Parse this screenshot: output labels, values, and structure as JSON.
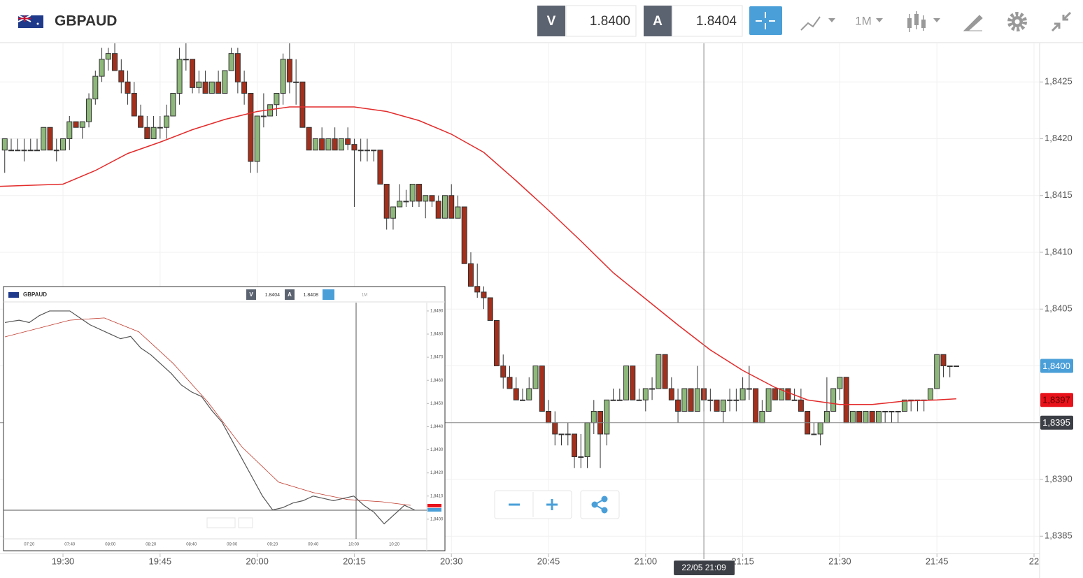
{
  "chart_data": {
    "type": "candlestick",
    "symbol": "GBPAUD",
    "bid_label": "V",
    "bid": "1.8400",
    "ask_label": "A",
    "ask": "1.8404",
    "timeframe": "1M",
    "xlim": [
      "19:20",
      "22:00"
    ],
    "ylim": [
      1.83836,
      1.84284
    ],
    "xticks": [
      "19:30",
      "19:45",
      "20:00",
      "20:15",
      "20:30",
      "20:45",
      "21:00",
      "21:15",
      "21:30",
      "21:45",
      {
        "value": "22:00",
        "label": "22"
      }
    ],
    "yticks": [
      {
        "value": 1.8425,
        "label": "1,8425"
      },
      {
        "value": 1.842,
        "label": "1,8420"
      },
      {
        "value": 1.8415,
        "label": "1,8415"
      },
      {
        "value": 1.841,
        "label": "1,8410"
      },
      {
        "value": 1.8405,
        "label": "1,8405"
      },
      {
        "value": 1.84,
        "label": "1,8400"
      },
      {
        "value": 1.8395,
        "label": "1,8395"
      },
      {
        "value": 1.839,
        "label": "1,8390"
      },
      {
        "value": 1.8385,
        "label": "1,8385"
      }
    ],
    "up_color": "#8db87a",
    "down_color": "#a3301c",
    "x": [
      "19:21",
      "19:22",
      "19:23",
      "19:24",
      "19:25",
      "19:26",
      "19:27",
      "19:28",
      "19:29",
      "19:30",
      "19:31",
      "19:32",
      "19:33",
      "19:34",
      "19:35",
      "19:36",
      "19:37",
      "19:38",
      "19:39",
      "19:40",
      "19:41",
      "19:42",
      "19:43",
      "19:44",
      "19:45",
      "19:46",
      "19:47",
      "19:48",
      "19:49",
      "19:50",
      "19:51",
      "19:52",
      "19:53",
      "19:54",
      "19:55",
      "19:56",
      "19:57",
      "19:58",
      "19:59",
      "20:00",
      "20:01",
      "20:02",
      "20:03",
      "20:04",
      "20:05",
      "20:06",
      "20:07",
      "20:08",
      "20:09",
      "20:10",
      "20:11",
      "20:12",
      "20:13",
      "20:14",
      "20:15",
      "20:16",
      "20:17",
      "20:18",
      "20:19",
      "20:20",
      "20:21",
      "20:22",
      "20:23",
      "20:24",
      "20:25",
      "20:26",
      "20:27",
      "20:28",
      "20:29",
      "20:30",
      "20:31",
      "20:32",
      "20:33",
      "20:34",
      "20:35",
      "20:36",
      "20:37",
      "20:38",
      "20:39",
      "20:40",
      "20:41",
      "20:42",
      "20:43",
      "20:44",
      "20:45",
      "20:46",
      "20:47",
      "20:48",
      "20:49",
      "20:50",
      "20:51",
      "20:52",
      "20:53",
      "20:54",
      "20:55",
      "20:56",
      "20:57",
      "20:58",
      "20:59",
      "21:00",
      "21:01",
      "21:02",
      "21:03",
      "21:04",
      "21:05",
      "21:06",
      "21:07",
      "21:08",
      "21:09",
      "21:10",
      "21:11",
      "21:12",
      "21:13",
      "21:14",
      "21:15",
      "21:16",
      "21:17",
      "21:18",
      "21:19",
      "21:20",
      "21:21",
      "21:22",
      "21:23",
      "21:24",
      "21:25",
      "21:26",
      "21:27",
      "21:28",
      "21:29",
      "21:30",
      "21:31",
      "21:32",
      "21:33",
      "21:34",
      "21:35",
      "21:36",
      "21:37",
      "21:38",
      "21:39",
      "21:40",
      "21:41",
      "21:42",
      "21:43",
      "21:44",
      "21:45",
      "21:46",
      "21:47",
      "21:48"
    ],
    "candles": [
      [
        1.8419,
        1.842,
        1.8417,
        1.842
      ],
      [
        1.8419,
        1.842,
        1.8419,
        1.8419
      ],
      [
        1.8419,
        1.842,
        1.8419,
        1.8419
      ],
      [
        1.8419,
        1.842,
        1.8418,
        1.8419
      ],
      [
        1.8419,
        1.842,
        1.8419,
        1.8419
      ],
      [
        1.8419,
        1.842,
        1.8419,
        1.8419
      ],
      [
        1.8419,
        1.8421,
        1.8419,
        1.8421
      ],
      [
        1.8421,
        1.8421,
        1.8419,
        1.8419
      ],
      [
        1.8419,
        1.842,
        1.8418,
        1.8419
      ],
      [
        1.8419,
        1.842,
        1.8419,
        1.842
      ],
      [
        1.842,
        1.8422,
        1.8419,
        1.84215
      ],
      [
        1.84215,
        1.84215,
        1.8421,
        1.8421
      ],
      [
        1.8421,
        1.84215,
        1.842,
        1.84215
      ],
      [
        1.84215,
        1.8424,
        1.8421,
        1.84235
      ],
      [
        1.84235,
        1.8426,
        1.8423,
        1.84255
      ],
      [
        1.84255,
        1.8428,
        1.8425,
        1.8427
      ],
      [
        1.8427,
        1.8428,
        1.8426,
        1.84275
      ],
      [
        1.84275,
        1.84285,
        1.8426,
        1.8426
      ],
      [
        1.8426,
        1.8427,
        1.8424,
        1.8425
      ],
      [
        1.8425,
        1.8426,
        1.8423,
        1.8424
      ],
      [
        1.8424,
        1.8425,
        1.8422,
        1.8422
      ],
      [
        1.8422,
        1.8423,
        1.8421,
        1.8421
      ],
      [
        1.8421,
        1.8422,
        1.842,
        1.842
      ],
      [
        1.842,
        1.8422,
        1.842,
        1.8421
      ],
      [
        1.8421,
        1.8422,
        1.842,
        1.8421
      ],
      [
        1.8421,
        1.8423,
        1.842,
        1.8422
      ],
      [
        1.8422,
        1.8424,
        1.8422,
        1.8424
      ],
      [
        1.8424,
        1.8428,
        1.8423,
        1.8427
      ],
      [
        1.8427,
        1.84285,
        1.8426,
        1.8427
      ],
      [
        1.8427,
        1.8427,
        1.8424,
        1.84245
      ],
      [
        1.84245,
        1.8426,
        1.8424,
        1.8425
      ],
      [
        1.8425,
        1.8426,
        1.8424,
        1.8424
      ],
      [
        1.8424,
        1.8425,
        1.8424,
        1.8425
      ],
      [
        1.8425,
        1.8426,
        1.8424,
        1.8424
      ],
      [
        1.8424,
        1.8426,
        1.8424,
        1.8426
      ],
      [
        1.8426,
        1.8428,
        1.8426,
        1.84275
      ],
      [
        1.84275,
        1.8428,
        1.8424,
        1.8425
      ],
      [
        1.8425,
        1.8426,
        1.8423,
        1.8424
      ],
      [
        1.8424,
        1.8424,
        1.8417,
        1.8418
      ],
      [
        1.8418,
        1.8422,
        1.8417,
        1.8422
      ],
      [
        1.8422,
        1.8424,
        1.8421,
        1.8422
      ],
      [
        1.8422,
        1.8423,
        1.8422,
        1.8423
      ],
      [
        1.8423,
        1.8424,
        1.8422,
        1.8424
      ],
      [
        1.8424,
        1.84275,
        1.8423,
        1.8427
      ],
      [
        1.8427,
        1.84285,
        1.8424,
        1.8425
      ],
      [
        1.8425,
        1.8427,
        1.8423,
        1.8425
      ],
      [
        1.8425,
        1.8425,
        1.8421,
        1.8421
      ],
      [
        1.8421,
        1.8421,
        1.8419,
        1.8419
      ],
      [
        1.8419,
        1.842,
        1.8419,
        1.842
      ],
      [
        1.842,
        1.8421,
        1.8419,
        1.8419
      ],
      [
        1.8419,
        1.842,
        1.8419,
        1.842
      ],
      [
        1.842,
        1.8421,
        1.8419,
        1.8419
      ],
      [
        1.8419,
        1.842,
        1.8419,
        1.842
      ],
      [
        1.842,
        1.8421,
        1.8419,
        1.84195
      ],
      [
        1.84195,
        1.842,
        1.8414,
        1.8419
      ],
      [
        1.8419,
        1.842,
        1.8418,
        1.8419
      ],
      [
        1.8419,
        1.842,
        1.8418,
        1.8419
      ],
      [
        1.8419,
        1.8419,
        1.8418,
        1.8419
      ],
      [
        1.8419,
        1.8419,
        1.8416,
        1.8416
      ],
      [
        1.8416,
        1.8416,
        1.8412,
        1.8413
      ],
      [
        1.8413,
        1.8414,
        1.8412,
        1.8414
      ],
      [
        1.8414,
        1.8416,
        1.8414,
        1.84145
      ],
      [
        1.84145,
        1.84155,
        1.8414,
        1.84145
      ],
      [
        1.84145,
        1.8416,
        1.8414,
        1.8416
      ],
      [
        1.8416,
        1.8416,
        1.8414,
        1.84145
      ],
      [
        1.84145,
        1.8415,
        1.8413,
        1.8415
      ],
      [
        1.8415,
        1.8415,
        1.8414,
        1.84145
      ],
      [
        1.84145,
        1.8415,
        1.8413,
        1.8413
      ],
      [
        1.8413,
        1.8415,
        1.8413,
        1.8415
      ],
      [
        1.8415,
        1.8416,
        1.8413,
        1.8413
      ],
      [
        1.8413,
        1.8415,
        1.8413,
        1.8414
      ],
      [
        1.8414,
        1.8414,
        1.8409,
        1.8409
      ],
      [
        1.8409,
        1.841,
        1.8407,
        1.8407
      ],
      [
        1.8407,
        1.8409,
        1.8406,
        1.84065
      ],
      [
        1.84065,
        1.8407,
        1.8405,
        1.8406
      ],
      [
        1.8406,
        1.8406,
        1.8404,
        1.8404
      ],
      [
        1.8404,
        1.8404,
        1.84,
        1.84
      ],
      [
        1.84,
        1.8401,
        1.8398,
        1.8399
      ],
      [
        1.8399,
        1.84,
        1.8398,
        1.8398
      ],
      [
        1.8398,
        1.8399,
        1.8397,
        1.8397
      ],
      [
        1.8397,
        1.8398,
        1.8397,
        1.8397
      ],
      [
        1.8397,
        1.8399,
        1.8397,
        1.8398
      ],
      [
        1.8398,
        1.84,
        1.8398,
        1.84
      ],
      [
        1.84,
        1.84,
        1.8396,
        1.8396
      ],
      [
        1.8396,
        1.8397,
        1.8395,
        1.8395
      ],
      [
        1.8395,
        1.8396,
        1.8393,
        1.8394
      ],
      [
        1.8394,
        1.8394,
        1.8393,
        1.8394
      ],
      [
        1.8394,
        1.8395,
        1.8393,
        1.8394
      ],
      [
        1.8394,
        1.8394,
        1.8391,
        1.8392
      ],
      [
        1.8392,
        1.8394,
        1.8391,
        1.8392
      ],
      [
        1.8392,
        1.8395,
        1.8391,
        1.8395
      ],
      [
        1.8395,
        1.8397,
        1.8394,
        1.8396
      ],
      [
        1.8396,
        1.8396,
        1.8391,
        1.8394
      ],
      [
        1.8394,
        1.8397,
        1.8393,
        1.8397
      ],
      [
        1.8397,
        1.8398,
        1.8397,
        1.8397
      ],
      [
        1.8397,
        1.8398,
        1.8397,
        1.8397
      ],
      [
        1.8397,
        1.84,
        1.8397,
        1.84
      ],
      [
        1.84,
        1.84,
        1.8397,
        1.8397
      ],
      [
        1.8397,
        1.8398,
        1.8397,
        1.8397
      ],
      [
        1.8397,
        1.8398,
        1.8396,
        1.8398
      ],
      [
        1.8398,
        1.8399,
        1.8397,
        1.8398
      ],
      [
        1.8398,
        1.8401,
        1.8398,
        1.8401
      ],
      [
        1.8401,
        1.8401,
        1.8398,
        1.8398
      ],
      [
        1.8398,
        1.8399,
        1.8397,
        1.8397
      ],
      [
        1.8397,
        1.8398,
        1.8395,
        1.8396
      ],
      [
        1.8396,
        1.8398,
        1.8396,
        1.8398
      ],
      [
        1.8398,
        1.8398,
        1.8396,
        1.8396
      ],
      [
        1.8396,
        1.84,
        1.8396,
        1.8398
      ],
      [
        1.8398,
        1.8398,
        1.8396,
        1.8397
      ],
      [
        1.8397,
        1.8398,
        1.8396,
        1.8397
      ],
      [
        1.8397,
        1.8397,
        1.8396,
        1.8396
      ],
      [
        1.8396,
        1.8397,
        1.8395,
        1.8397
      ],
      [
        1.8397,
        1.8398,
        1.8396,
        1.8397
      ],
      [
        1.8397,
        1.8398,
        1.8396,
        1.8397
      ],
      [
        1.8397,
        1.8399,
        1.8397,
        1.8398
      ],
      [
        1.8398,
        1.84,
        1.8397,
        1.8398
      ],
      [
        1.8398,
        1.8398,
        1.8395,
        1.8395
      ],
      [
        1.8395,
        1.8397,
        1.8395,
        1.8396
      ],
      [
        1.8396,
        1.8398,
        1.8396,
        1.8398
      ],
      [
        1.8398,
        1.8398,
        1.8397,
        1.8397
      ],
      [
        1.8397,
        1.8398,
        1.8397,
        1.8398
      ],
      [
        1.8398,
        1.8398,
        1.8397,
        1.8397
      ],
      [
        1.8397,
        1.8398,
        1.8397,
        1.8397
      ],
      [
        1.8397,
        1.8398,
        1.8396,
        1.8396
      ],
      [
        1.8396,
        1.8396,
        1.8394,
        1.8394
      ],
      [
        1.8394,
        1.8395,
        1.8394,
        1.8394
      ],
      [
        1.8394,
        1.8395,
        1.8393,
        1.8395
      ],
      [
        1.8395,
        1.8399,
        1.8395,
        1.8396
      ],
      [
        1.8396,
        1.8398,
        1.8396,
        1.8398
      ],
      [
        1.8398,
        1.8399,
        1.8397,
        1.8399
      ],
      [
        1.8399,
        1.8399,
        1.8395,
        1.8395
      ],
      [
        1.8395,
        1.8396,
        1.8395,
        1.8396
      ],
      [
        1.8396,
        1.8396,
        1.8395,
        1.8395
      ],
      [
        1.8395,
        1.8396,
        1.8395,
        1.8396
      ],
      [
        1.8396,
        1.8396,
        1.8395,
        1.8395
      ],
      [
        1.8395,
        1.8396,
        1.8395,
        1.8396
      ],
      [
        1.8396,
        1.8396,
        1.8395,
        1.8396
      ],
      [
        1.8396,
        1.8396,
        1.8395,
        1.8396
      ],
      [
        1.8396,
        1.8396,
        1.8395,
        1.8396
      ],
      [
        1.8396,
        1.8397,
        1.8396,
        1.8397
      ],
      [
        1.8397,
        1.8397,
        1.8396,
        1.8397
      ],
      [
        1.8397,
        1.8397,
        1.8396,
        1.8397
      ],
      [
        1.8397,
        1.8397,
        1.8396,
        1.8397
      ],
      [
        1.8397,
        1.8398,
        1.8397,
        1.8398
      ],
      [
        1.8398,
        1.8401,
        1.8398,
        1.8401
      ],
      [
        1.8401,
        1.8401,
        1.8399,
        1.84
      ],
      [
        1.84,
        1.84,
        1.8399,
        1.84
      ],
      [
        1.84,
        1.84,
        1.84,
        1.84
      ]
    ],
    "moving_average": {
      "color": "#e32b2b",
      "x": [
        "19:20",
        "19:30",
        "19:35",
        "19:40",
        "19:45",
        "19:50",
        "19:55",
        "20:00",
        "20:05",
        "20:10",
        "20:15",
        "20:20",
        "20:25",
        "20:30",
        "20:35",
        "20:40",
        "20:45",
        "20:50",
        "20:55",
        "21:00",
        "21:05",
        "21:10",
        "21:15",
        "21:20",
        "21:25",
        "21:30",
        "21:35",
        "21:40",
        "21:45",
        "21:48"
      ],
      "values": [
        1.84158,
        1.8416,
        1.84172,
        1.84187,
        1.84197,
        1.84208,
        1.84217,
        1.84224,
        1.84228,
        1.84228,
        1.84228,
        1.84224,
        1.84216,
        1.84204,
        1.84188,
        1.84163,
        1.84137,
        1.8411,
        1.84082,
        1.84059,
        1.84036,
        1.84014,
        1.83996,
        1.83981,
        1.8397,
        1.83966,
        1.83966,
        1.83969,
        1.8397,
        1.83971
      ]
    },
    "price_tags": [
      {
        "value": 1.84,
        "label": "1,8400",
        "color": "#4a9fd8"
      },
      {
        "value": 1.8397,
        "label": "1,8397",
        "color": "#e8121a"
      }
    ],
    "crosshair": {
      "x": "21:09",
      "y": 1.8395,
      "x_label": "22/05 21:09",
      "y_label": "1,8395"
    }
  },
  "inset": {
    "symbol": "GBPAUD",
    "bid_label": "V",
    "bid": "1.8404",
    "ask_label": "A",
    "ask": "1.8408",
    "timeframe": "1M",
    "chart": {
      "type": "line",
      "color": "#555555",
      "xlim": [
        "07:08",
        "10:36"
      ],
      "ylim": [
        1.83918,
        1.84936
      ],
      "xticks": [
        "07:20",
        "07:40",
        "08:00",
        "08:20",
        "08:40",
        "09:00",
        "09:20",
        "09:40",
        "10:00",
        "10:20"
      ],
      "yticks": [
        {
          "value": 1.849,
          "label": "1,8490"
        },
        {
          "value": 1.848,
          "label": "1,8480"
        },
        {
          "value": 1.847,
          "label": "1,8470"
        },
        {
          "value": 1.846,
          "label": "1,8460"
        },
        {
          "value": 1.845,
          "label": "1,8450"
        },
        {
          "value": 1.844,
          "label": "1,8440"
        },
        {
          "value": 1.843,
          "label": "1,8430"
        },
        {
          "value": 1.842,
          "label": "1,8420"
        },
        {
          "value": 1.841,
          "label": "1,8410"
        },
        {
          "value": 1.84,
          "label": "1,8400"
        }
      ],
      "x": [
        "07:08",
        "07:15",
        "07:20",
        "07:25",
        "07:30",
        "07:40",
        "07:45",
        "07:50",
        "08:00",
        "08:05",
        "08:10",
        "08:15",
        "08:20",
        "08:25",
        "08:30",
        "08:35",
        "08:40",
        "08:45",
        "08:50",
        "08:55",
        "09:00",
        "09:05",
        "09:10",
        "09:15",
        "09:20",
        "09:25",
        "09:30",
        "09:35",
        "09:40",
        "09:45",
        "09:50",
        "09:55",
        "10:00",
        "10:05",
        "10:10",
        "10:15",
        "10:20",
        "10:25",
        "10:30"
      ],
      "values": [
        1.8485,
        1.8486,
        1.8485,
        1.8488,
        1.849,
        1.849,
        1.8487,
        1.8484,
        1.848,
        1.8478,
        1.8479,
        1.8474,
        1.8471,
        1.8467,
        1.8463,
        1.8458,
        1.8455,
        1.8453,
        1.8447,
        1.8442,
        1.8434,
        1.8426,
        1.8418,
        1.841,
        1.8404,
        1.8405,
        1.8407,
        1.8408,
        1.841,
        1.8409,
        1.8408,
        1.8409,
        1.841,
        1.8406,
        1.8403,
        1.8398,
        1.8402,
        1.8406,
        1.8404
      ],
      "moving_average": {
        "color": "#c0392b",
        "x": [
          "07:08",
          "07:40",
          "07:57",
          "08:14",
          "08:31",
          "08:48",
          "09:05",
          "09:23",
          "09:40",
          "09:57",
          "10:14",
          "10:28"
        ],
        "values": [
          1.84788,
          1.8486,
          1.8487,
          1.8481,
          1.84673,
          1.84507,
          1.84311,
          1.8416,
          1.84115,
          1.84085,
          1.84075,
          1.8406
        ]
      }
    }
  }
}
